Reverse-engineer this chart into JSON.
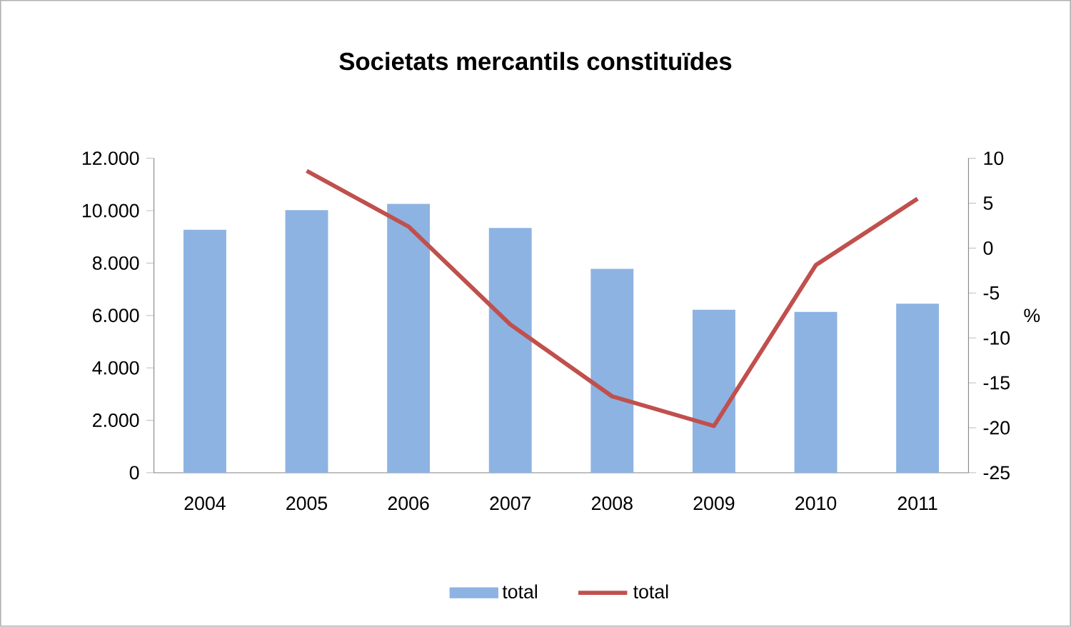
{
  "chart_data": {
    "type": "bar",
    "title": "Societats mercantils constituïdes",
    "categories": [
      "2004",
      "2005",
      "2006",
      "2007",
      "2008",
      "2009",
      "2010",
      "2011"
    ],
    "series": [
      {
        "name": "total",
        "color": "#8db3e2",
        "values": [
          9270,
          10020,
          10260,
          9340,
          7780,
          6220,
          6140,
          6450
        ]
      },
      {
        "name": "total",
        "type": "line",
        "axis": "y2",
        "color": "#c0504d",
        "values": [
          null,
          8.6,
          2.4,
          -8.5,
          -16.5,
          -19.8,
          -1.9,
          5.5
        ]
      }
    ],
    "ylim": [
      0,
      12000
    ],
    "yticks": [
      0,
      {
        "value": 2000,
        "label": "2.000"
      },
      {
        "value": 4000,
        "label": "4.000"
      },
      {
        "value": 6000,
        "label": "6.000"
      },
      {
        "value": 8000,
        "label": "8.000"
      },
      {
        "value": 10000,
        "label": "10.000"
      },
      {
        "value": 12000,
        "label": "12.000"
      }
    ],
    "y2lim": [
      -25,
      10
    ],
    "y2ticks": [
      -25,
      -20,
      -15,
      -10,
      -5,
      0,
      5,
      10
    ],
    "y2label": "%",
    "legend": "bottom"
  }
}
